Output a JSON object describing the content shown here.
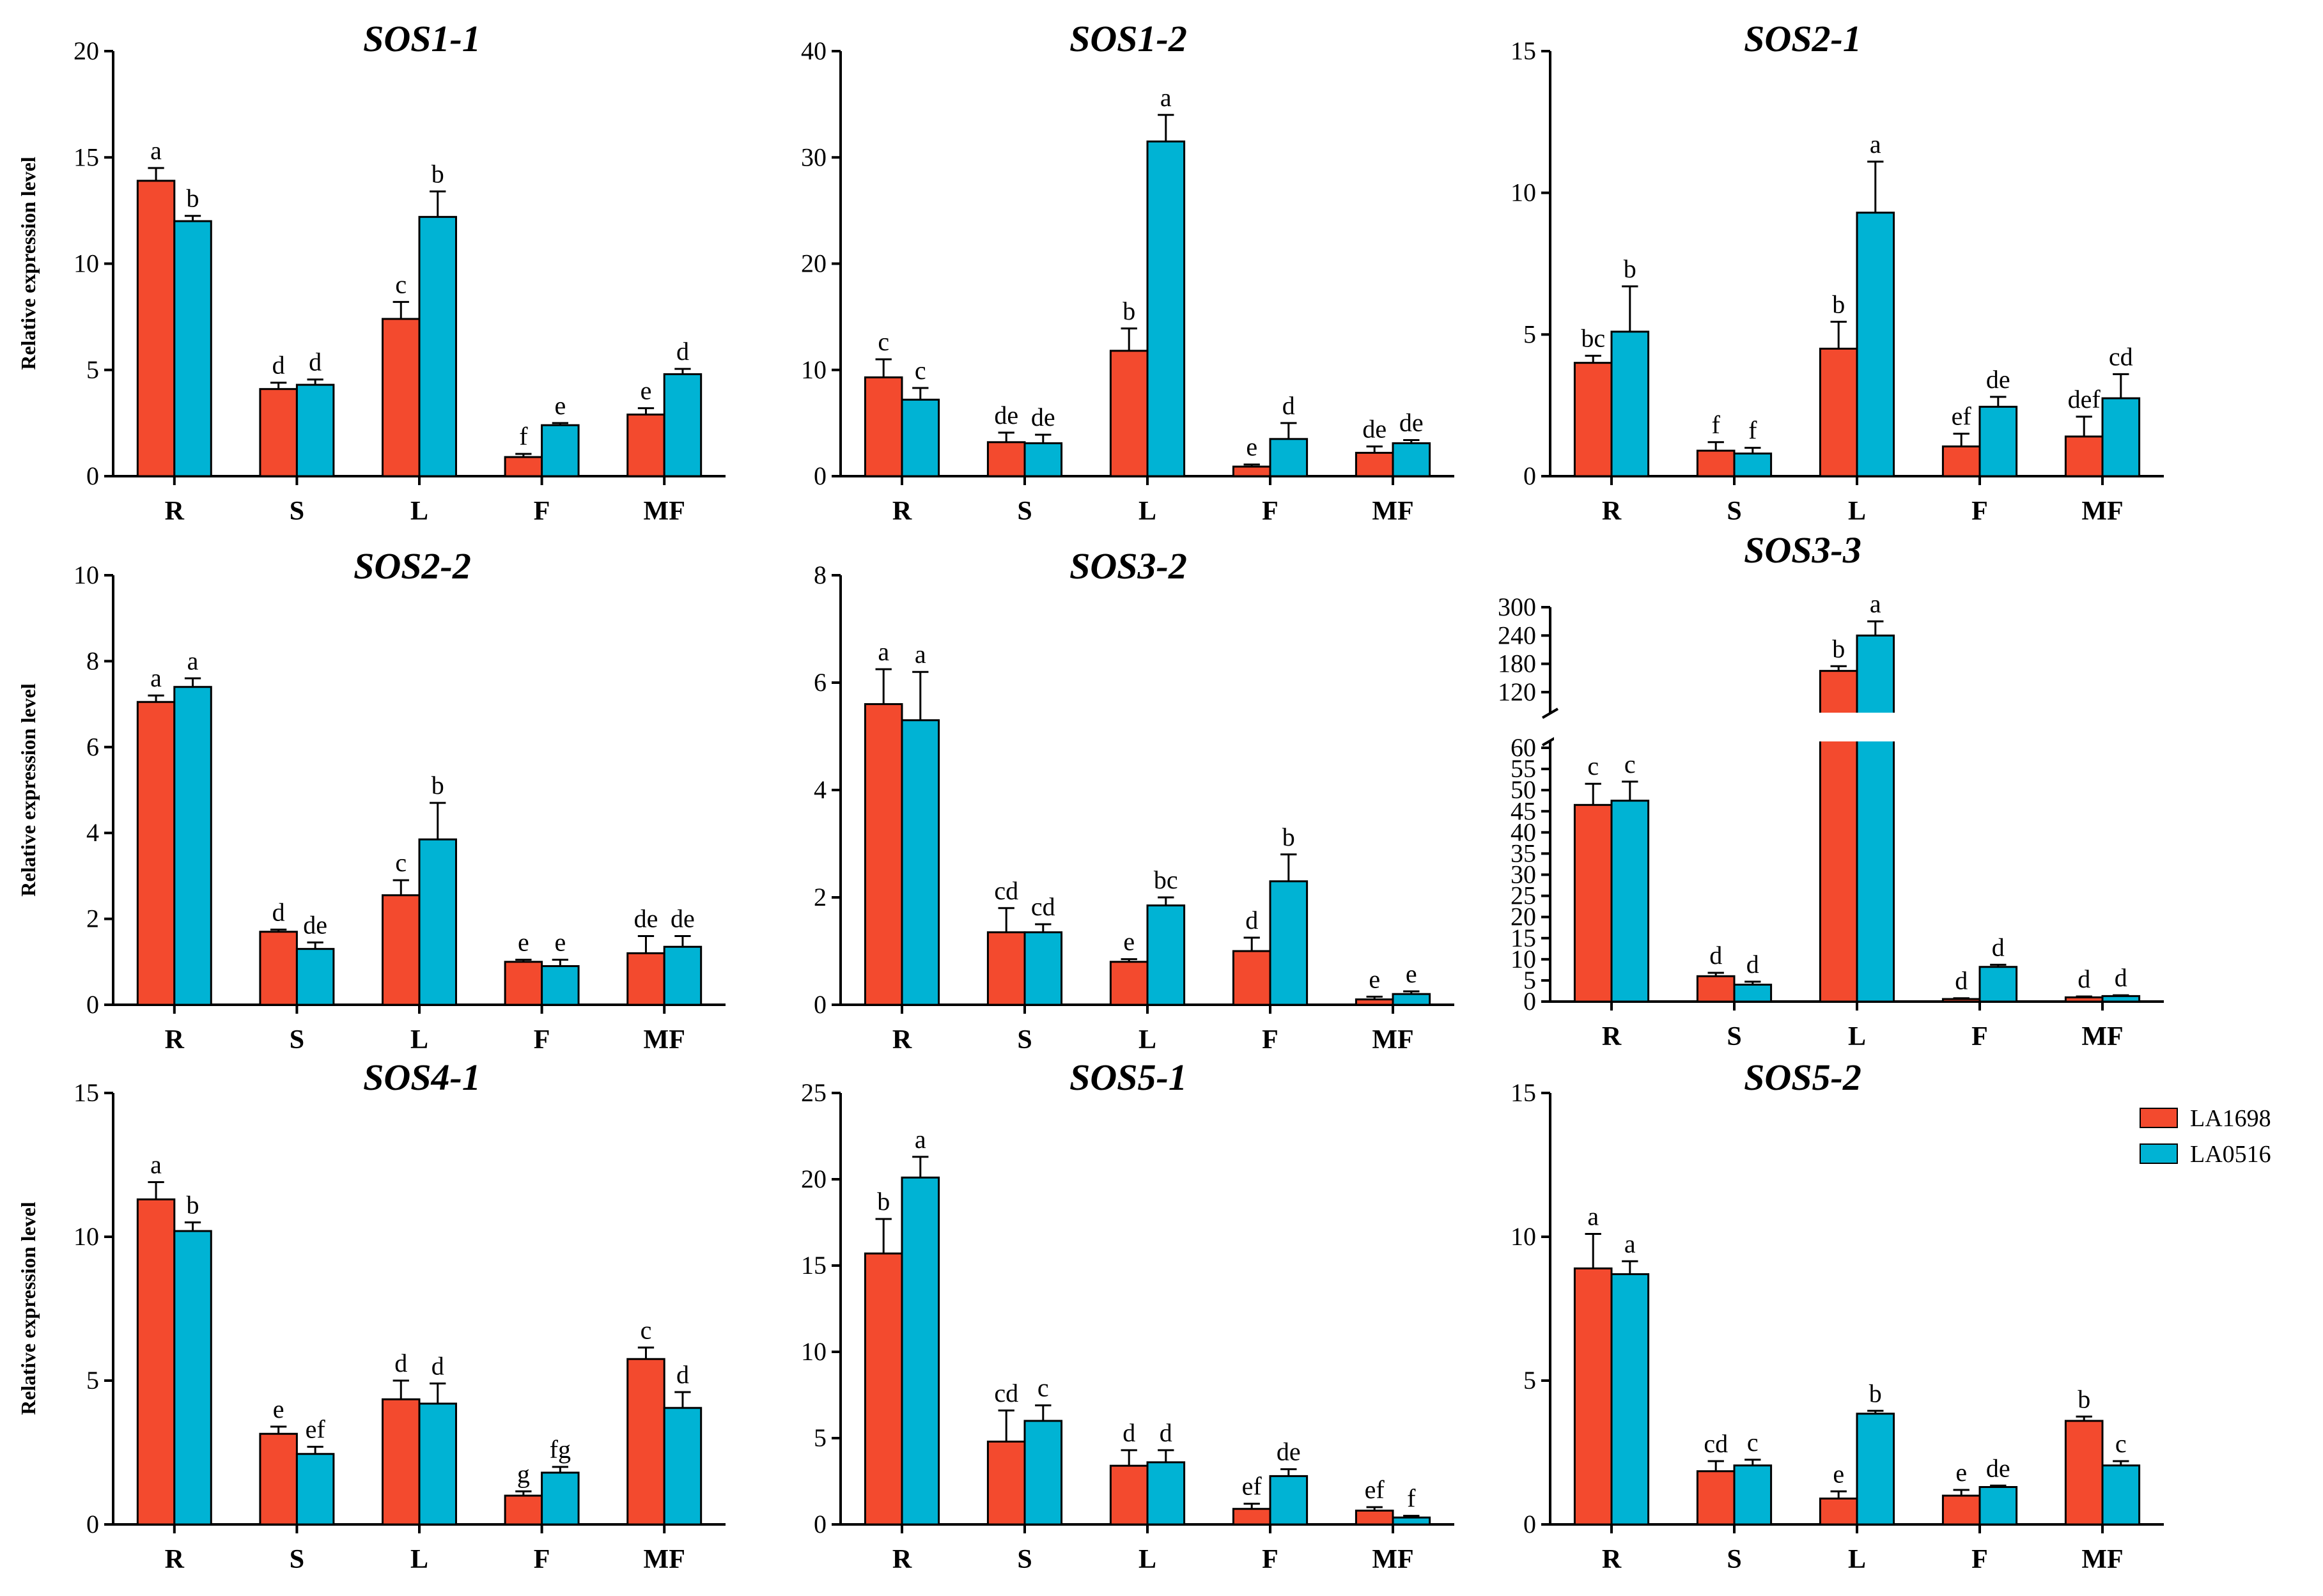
{
  "figure": {
    "ylabel": "Relative expression level",
    "legend": [
      {
        "name": "LA1698",
        "color": "#F34A2E"
      },
      {
        "name": "LA0516",
        "color": "#00B3D4"
      }
    ],
    "colors": {
      "series1": "#F34A2E",
      "series2": "#00B3D4",
      "axis": "#000000"
    }
  },
  "chart_data": [
    {
      "type": "bar",
      "title": "SOS1-1",
      "ylabel": "Relative expression level",
      "categories": [
        "R",
        "S",
        "L",
        "F",
        "MF"
      ],
      "ylim": [
        0,
        20
      ],
      "yticks": [
        0,
        5,
        10,
        15,
        20
      ],
      "series": [
        {
          "name": "LA1698",
          "values": [
            13.9,
            4.1,
            7.4,
            0.9,
            2.9
          ],
          "errors": [
            0.6,
            0.3,
            0.8,
            0.15,
            0.3
          ],
          "letters": [
            "a",
            "d",
            "c",
            "f",
            "e"
          ]
        },
        {
          "name": "LA0516",
          "values": [
            12.0,
            4.3,
            12.2,
            2.4,
            4.8
          ],
          "errors": [
            0.25,
            0.25,
            1.2,
            0.1,
            0.25
          ],
          "letters": [
            "b",
            "d",
            "b",
            "e",
            "d"
          ]
        }
      ]
    },
    {
      "type": "bar",
      "title": "SOS1-2",
      "ylabel": "",
      "categories": [
        "R",
        "S",
        "L",
        "F",
        "MF"
      ],
      "ylim": [
        0,
        40
      ],
      "yticks": [
        0,
        10,
        20,
        30,
        40
      ],
      "series": [
        {
          "name": "LA1698",
          "values": [
            9.3,
            3.2,
            11.8,
            0.9,
            2.2
          ],
          "errors": [
            1.7,
            0.9,
            2.1,
            0.2,
            0.6
          ],
          "letters": [
            "c",
            "de",
            "b",
            "e",
            "de"
          ]
        },
        {
          "name": "LA0516",
          "values": [
            7.2,
            3.1,
            31.5,
            3.5,
            3.1
          ],
          "errors": [
            1.1,
            0.8,
            2.5,
            1.5,
            0.3
          ],
          "letters": [
            "c",
            "de",
            "a",
            "d",
            "de"
          ]
        }
      ]
    },
    {
      "type": "bar",
      "title": "SOS2-1",
      "ylabel": "",
      "categories": [
        "R",
        "S",
        "L",
        "F",
        "MF"
      ],
      "ylim": [
        0,
        15
      ],
      "yticks": [
        0,
        5,
        10,
        15
      ],
      "series": [
        {
          "name": "LA1698",
          "values": [
            4.0,
            0.9,
            4.5,
            1.05,
            1.4
          ],
          "errors": [
            0.25,
            0.3,
            0.95,
            0.45,
            0.7
          ],
          "letters": [
            "bc",
            "f",
            "b",
            "ef",
            "def"
          ]
        },
        {
          "name": "LA0516",
          "values": [
            5.1,
            0.8,
            9.3,
            2.45,
            2.75
          ],
          "errors": [
            1.6,
            0.2,
            1.8,
            0.35,
            0.85
          ],
          "letters": [
            "b",
            "f",
            "a",
            "de",
            "cd"
          ]
        }
      ]
    },
    {
      "type": "bar",
      "title": "SOS2-2",
      "ylabel": "Relative expression level",
      "categories": [
        "R",
        "S",
        "L",
        "F",
        "MF"
      ],
      "ylim": [
        0,
        10
      ],
      "yticks": [
        0,
        2,
        4,
        6,
        8,
        10
      ],
      "series": [
        {
          "name": "LA1698",
          "values": [
            7.05,
            1.7,
            2.55,
            1.0,
            1.2
          ],
          "errors": [
            0.15,
            0.05,
            0.35,
            0.05,
            0.4
          ],
          "letters": [
            "a",
            "d",
            "c",
            "e",
            "de"
          ]
        },
        {
          "name": "LA0516",
          "values": [
            7.4,
            1.3,
            3.85,
            0.9,
            1.35
          ],
          "errors": [
            0.2,
            0.15,
            0.85,
            0.15,
            0.25
          ],
          "letters": [
            "a",
            "de",
            "b",
            "e",
            "de"
          ]
        }
      ]
    },
    {
      "type": "bar",
      "title": "SOS3-2",
      "ylabel": "",
      "categories": [
        "R",
        "S",
        "L",
        "F",
        "MF"
      ],
      "ylim": [
        0,
        8
      ],
      "yticks": [
        0,
        2,
        4,
        6,
        8
      ],
      "series": [
        {
          "name": "LA1698",
          "values": [
            5.6,
            1.35,
            0.8,
            1.0,
            0.1
          ],
          "errors": [
            0.65,
            0.45,
            0.05,
            0.25,
            0.05
          ],
          "letters": [
            "a",
            "cd",
            "e",
            "d",
            "e"
          ]
        },
        {
          "name": "LA0516",
          "values": [
            5.3,
            1.35,
            1.85,
            2.3,
            0.2
          ],
          "errors": [
            0.9,
            0.15,
            0.15,
            0.5,
            0.05
          ],
          "letters": [
            "a",
            "cd",
            "bc",
            "b",
            "e"
          ]
        }
      ]
    },
    {
      "type": "bar",
      "title": "SOS3-3",
      "ylabel": "",
      "categories": [
        "R",
        "S",
        "L",
        "F",
        "MF"
      ],
      "ylim": [
        0,
        300
      ],
      "broken_axis": {
        "lower": [
          0,
          60
        ],
        "upper": [
          90,
          300
        ]
      },
      "yticks_lower": [
        0,
        5,
        10,
        15,
        20,
        25,
        30,
        35,
        40,
        45,
        50,
        55,
        60
      ],
      "yticks_upper": [
        120,
        180,
        240,
        300
      ],
      "series": [
        {
          "name": "LA1698",
          "values": [
            46.5,
            6.0,
            165,
            0.6,
            1.0
          ],
          "errors": [
            5,
            0.8,
            10,
            0.2,
            0.2
          ],
          "letters": [
            "c",
            "d",
            "b",
            "d",
            "d"
          ]
        },
        {
          "name": "LA0516",
          "values": [
            47.5,
            4.0,
            240,
            8.2,
            1.3
          ],
          "errors": [
            4.5,
            0.7,
            30,
            0.5,
            0.2
          ],
          "letters": [
            "c",
            "d",
            "a",
            "d",
            "d"
          ]
        }
      ]
    },
    {
      "type": "bar",
      "title": "SOS4-1",
      "ylabel": "Relative expression level",
      "categories": [
        "R",
        "S",
        "L",
        "F",
        "MF"
      ],
      "ylim": [
        0,
        15
      ],
      "yticks": [
        0,
        5,
        10,
        15
      ],
      "series": [
        {
          "name": "LA1698",
          "values": [
            11.3,
            3.15,
            4.35,
            1.0,
            5.75
          ],
          "errors": [
            0.6,
            0.25,
            0.65,
            0.15,
            0.4
          ],
          "letters": [
            "a",
            "e",
            "d",
            "g",
            "c"
          ]
        },
        {
          "name": "LA0516",
          "values": [
            10.2,
            2.45,
            4.2,
            1.8,
            4.05
          ],
          "errors": [
            0.3,
            0.25,
            0.7,
            0.2,
            0.55
          ],
          "letters": [
            "b",
            "ef",
            "d",
            "fg",
            "d"
          ]
        }
      ]
    },
    {
      "type": "bar",
      "title": "SOS5-1",
      "ylabel": "",
      "categories": [
        "R",
        "S",
        "L",
        "F",
        "MF"
      ],
      "ylim": [
        0,
        25
      ],
      "yticks": [
        0,
        5,
        10,
        15,
        20,
        25
      ],
      "series": [
        {
          "name": "LA1698",
          "values": [
            15.7,
            4.8,
            3.4,
            0.9,
            0.8
          ],
          "errors": [
            2.0,
            1.8,
            0.9,
            0.3,
            0.2
          ],
          "letters": [
            "b",
            "cd",
            "d",
            "ef",
            "ef"
          ]
        },
        {
          "name": "LA0516",
          "values": [
            20.1,
            6.0,
            3.6,
            2.8,
            0.4
          ],
          "errors": [
            1.2,
            0.9,
            0.7,
            0.4,
            0.1
          ],
          "letters": [
            "a",
            "c",
            "d",
            "de",
            "f"
          ]
        }
      ]
    },
    {
      "type": "bar",
      "title": "SOS5-2",
      "ylabel": "",
      "categories": [
        "R",
        "S",
        "L",
        "F",
        "MF"
      ],
      "ylim": [
        0,
        15
      ],
      "yticks": [
        0,
        5,
        10,
        15
      ],
      "series": [
        {
          "name": "LA1698",
          "values": [
            8.9,
            1.85,
            0.9,
            1.0,
            3.6
          ],
          "errors": [
            1.2,
            0.35,
            0.25,
            0.2,
            0.15
          ],
          "letters": [
            "a",
            "cd",
            "e",
            "e",
            "b"
          ]
        },
        {
          "name": "LA0516",
          "values": [
            8.7,
            2.05,
            3.85,
            1.3,
            2.05
          ],
          "errors": [
            0.45,
            0.2,
            0.1,
            0.05,
            0.15
          ],
          "letters": [
            "a",
            "c",
            "b",
            "de",
            "c"
          ]
        }
      ]
    }
  ]
}
